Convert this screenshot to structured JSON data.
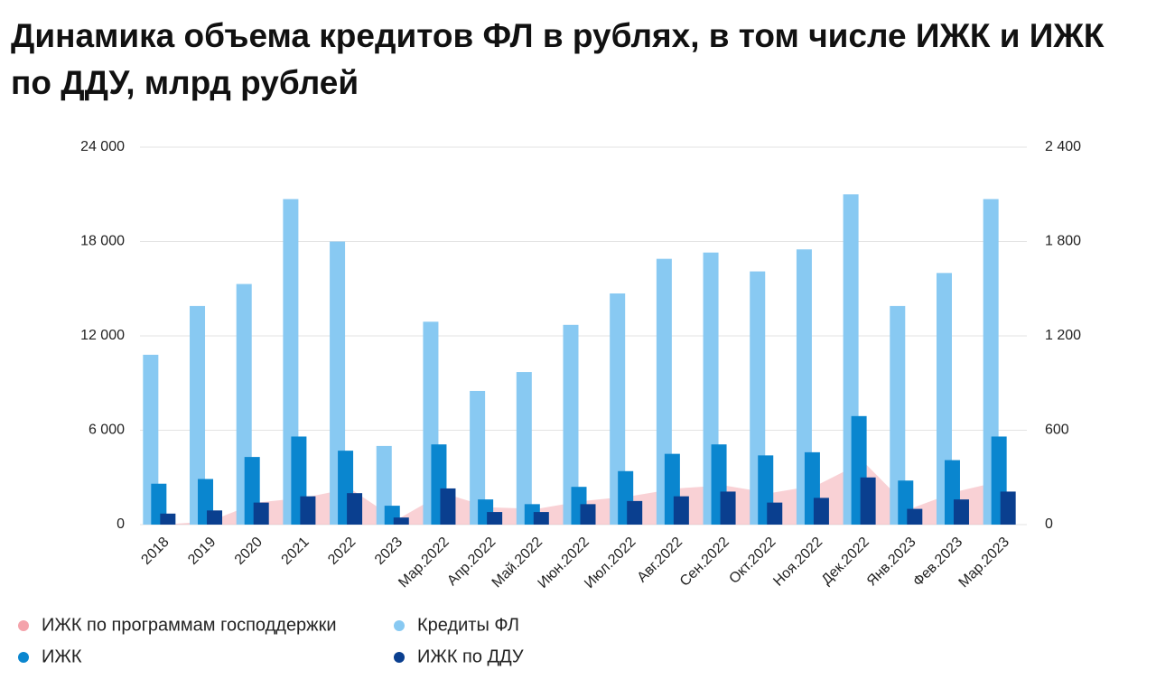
{
  "chart_data": {
    "type": "bar",
    "title": "Динамика объема кредитов ФЛ в рублях, в том числе ИЖК и ИЖК по ДДУ, млрд рублей",
    "categories": [
      "2018",
      "2019",
      "2020",
      "2021",
      "2022",
      "2023",
      "Мар.2022",
      "Апр.2022",
      "Май.2022",
      "Июн.2022",
      "Июл.2022",
      "Авг.2022",
      "Сен.2022",
      "Окт.2022",
      "Ноя.2022",
      "Дек.2022",
      "Янв.2023",
      "Фев.2023",
      "Мар.2023"
    ],
    "series": [
      {
        "name": "ИЖК по программам господдержки",
        "color": "#f4a3ab",
        "kind": "area",
        "values": [
          0,
          200,
          1400,
          1700,
          2300,
          300,
          2000,
          1100,
          1000,
          1500,
          1800,
          2300,
          2500,
          2000,
          2500,
          4000,
          1000,
          2100,
          2800
        ]
      },
      {
        "name": "Кредиты ФЛ",
        "color": "#88c9f2",
        "kind": "bar",
        "values": [
          10800,
          13900,
          15300,
          20700,
          18000,
          5000,
          12900,
          8500,
          9700,
          12700,
          14700,
          16900,
          17300,
          16100,
          17500,
          21000,
          13900,
          16000,
          20700
        ]
      },
      {
        "name": "ИЖК",
        "color": "#0a86cf",
        "kind": "bar",
        "values": [
          2600,
          2900,
          4300,
          5600,
          4700,
          1200,
          5100,
          1600,
          1300,
          2400,
          3400,
          4500,
          5100,
          4400,
          4600,
          6900,
          2800,
          4100,
          5600
        ]
      },
      {
        "name": "ИЖК по ДДУ",
        "color": "#0a3f8f",
        "kind": "bar",
        "values": [
          700,
          900,
          1400,
          1800,
          2000,
          450,
          2300,
          800,
          800,
          1300,
          1500,
          1800,
          2100,
          1400,
          1700,
          3000,
          1000,
          1600,
          2100
        ]
      }
    ],
    "ylim": [
      0,
      24000
    ],
    "yticks": [
      0,
      {
        "value": 6000,
        "label": "6 000"
      },
      {
        "value": 12000,
        "label": "12 000"
      },
      {
        "value": 18000,
        "label": "18 000"
      },
      {
        "value": 24000,
        "label": "24 000"
      }
    ],
    "y2lim": [
      0,
      2400
    ],
    "y2ticks": [
      0,
      600,
      {
        "value": 1200,
        "label": "1 200"
      },
      {
        "value": 1800,
        "label": "1 800"
      },
      {
        "value": 2400,
        "label": "2 400"
      }
    ],
    "grid": true
  }
}
